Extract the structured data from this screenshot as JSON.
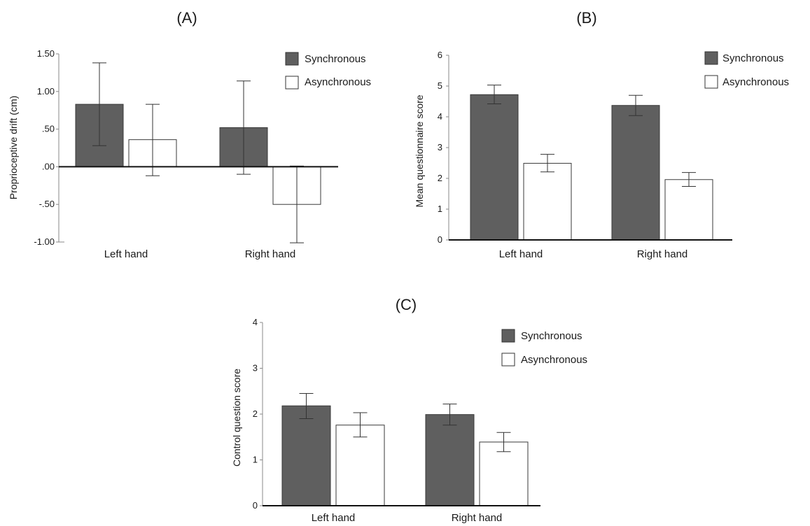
{
  "figure": {
    "panels": [
      "(A)",
      "(B)",
      "(C)"
    ]
  },
  "chart_data": [
    {
      "type": "bar",
      "panel_label": "(A)",
      "title": "",
      "xlabel": "",
      "ylabel": "Proprioceptive drift (cm)",
      "categories": [
        "Left hand",
        "Right hand"
      ],
      "ylim": [
        -1.0,
        1.5
      ],
      "yticks": [
        -1.0,
        -0.5,
        0.0,
        0.5,
        1.0,
        1.5
      ],
      "ytick_labels": [
        "-1.00",
        "-.50",
        ".00",
        ".50",
        "1.00",
        "1.50"
      ],
      "zero_line": true,
      "legend": {
        "entries": [
          "Synchronous",
          "Asynchronous"
        ],
        "placement": "top-right"
      },
      "series": [
        {
          "name": "Synchronous",
          "color": "#5f5f5f",
          "values": [
            0.83,
            0.52
          ],
          "err_low": [
            0.28,
            -0.1
          ],
          "err_high": [
            1.38,
            1.14
          ]
        },
        {
          "name": "Asynchronous",
          "color": "#ffffff",
          "values": [
            0.36,
            -0.5
          ],
          "err_low": [
            -0.12,
            -1.01
          ],
          "err_high": [
            0.83,
            0.01
          ]
        }
      ]
    },
    {
      "type": "bar",
      "panel_label": "(B)",
      "title": "",
      "xlabel": "",
      "ylabel": "Mean questionnaire score",
      "categories": [
        "Left hand",
        "Right hand"
      ],
      "ylim": [
        0,
        6
      ],
      "yticks": [
        0,
        1,
        2,
        3,
        4,
        5,
        6
      ],
      "ytick_labels": [
        "0",
        "1",
        "2",
        "3",
        "4",
        "5",
        "6"
      ],
      "zero_line": false,
      "legend": {
        "entries": [
          "Synchronous",
          "Asynchronous"
        ],
        "placement": "top-right"
      },
      "series": [
        {
          "name": "Synchronous",
          "color": "#5f5f5f",
          "values": [
            4.72,
            4.37
          ],
          "err_low": [
            4.42,
            4.04
          ],
          "err_high": [
            5.03,
            4.7
          ]
        },
        {
          "name": "Asynchronous",
          "color": "#ffffff",
          "values": [
            2.49,
            1.96
          ],
          "err_low": [
            2.21,
            1.74
          ],
          "err_high": [
            2.78,
            2.19
          ]
        }
      ]
    },
    {
      "type": "bar",
      "panel_label": "(C)",
      "title": "",
      "xlabel": "",
      "ylabel": "Control question score",
      "categories": [
        "Left hand",
        "Right hand"
      ],
      "ylim": [
        0,
        4
      ],
      "yticks": [
        0,
        1,
        2,
        3,
        4
      ],
      "ytick_labels": [
        "0",
        "1",
        "2",
        "3",
        "4"
      ],
      "zero_line": false,
      "legend": {
        "entries": [
          "Synchronous",
          "Asynchronous"
        ],
        "placement": "top-right"
      },
      "series": [
        {
          "name": "Synchronous",
          "color": "#5f5f5f",
          "values": [
            2.18,
            1.99
          ],
          "err_low": [
            1.9,
            1.76
          ],
          "err_high": [
            2.45,
            2.22
          ]
        },
        {
          "name": "Asynchronous",
          "color": "#ffffff",
          "values": [
            1.76,
            1.39
          ],
          "err_low": [
            1.5,
            1.18
          ],
          "err_high": [
            2.03,
            1.6
          ]
        }
      ]
    }
  ]
}
